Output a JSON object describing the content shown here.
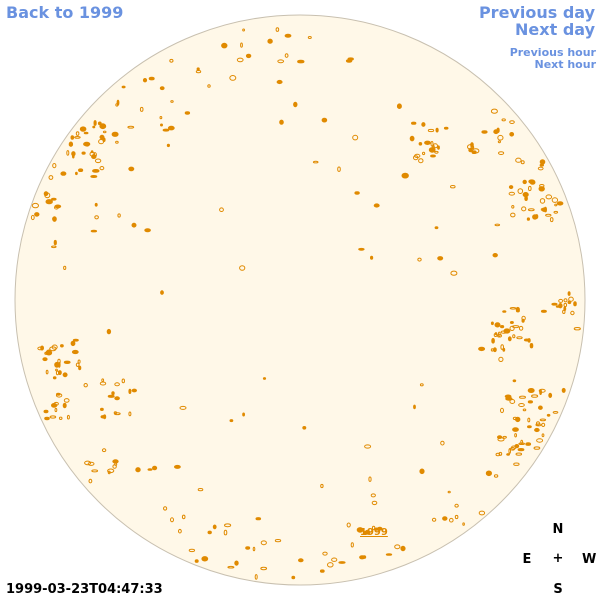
{
  "nav": {
    "back": "Back to 1999",
    "previous_day": "Previous day",
    "next_day": "Next day",
    "previous_hour": "Previous hour",
    "next_hour": "Next hour"
  },
  "year_link": "1999",
  "timestamp": "1999-03-23T04:47:33",
  "compass": {
    "north": "N",
    "south": "S",
    "east": "E",
    "west": "W",
    "center": "+"
  },
  "colors": {
    "link": "#6a92e0",
    "disk_fill": "#fff8e8",
    "disk_edge": "#c8c0b0",
    "feature": "#e08a00"
  }
}
